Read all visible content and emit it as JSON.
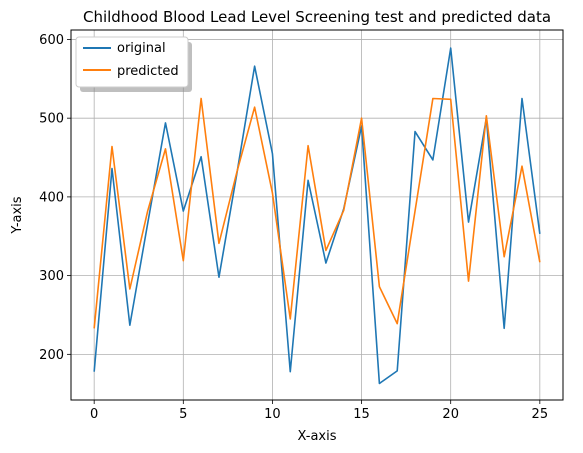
{
  "chart_data": {
    "type": "line",
    "title": "Childhood Blood Lead Level Screening test and predicted data",
    "xlabel": "X-axis",
    "ylabel": "Y-axis",
    "xlim": [
      -1.3,
      26.3
    ],
    "ylim": [
      142,
      612
    ],
    "xticks": [
      0,
      5,
      10,
      15,
      20,
      25
    ],
    "yticks": [
      200,
      300,
      400,
      500,
      600
    ],
    "grid": true,
    "legend_position": "top-left",
    "x": [
      0,
      1,
      2,
      3,
      4,
      5,
      6,
      7,
      8,
      9,
      10,
      11,
      12,
      13,
      14,
      15,
      16,
      17,
      18,
      19,
      20,
      21,
      22,
      23,
      24,
      25
    ],
    "series": [
      {
        "name": "original",
        "color": "#1f77b4",
        "values": [
          178,
          436,
          237,
          366,
          494,
          382,
          451,
          298,
          429,
          566,
          455,
          178,
          421,
          316,
          385,
          490,
          163,
          179,
          483,
          447,
          589,
          368,
          500,
          233,
          525,
          353
        ]
      },
      {
        "name": "predicted",
        "color": "#ff7f0e",
        "values": [
          233,
          464,
          283,
          382,
          461,
          319,
          525,
          341,
          431,
          514,
          405,
          245,
          465,
          332,
          383,
          500,
          286,
          239,
          382,
          525,
          524,
          293,
          503,
          324,
          439,
          317
        ]
      }
    ]
  }
}
